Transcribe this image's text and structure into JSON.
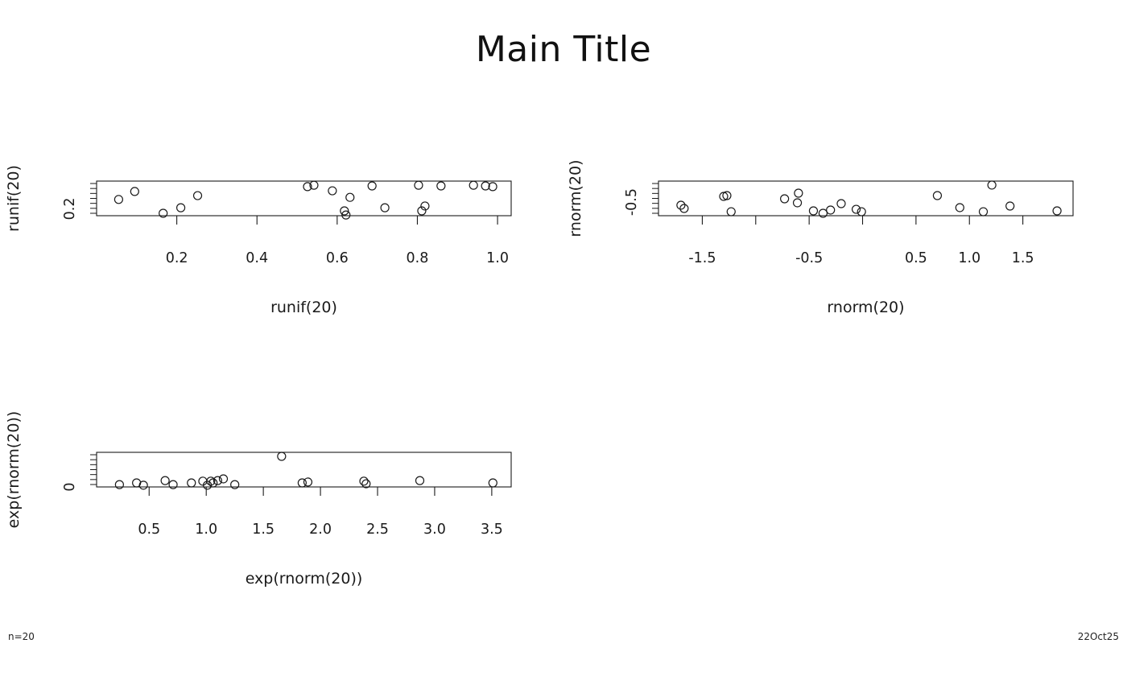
{
  "page": {
    "main_title": "Main Title",
    "footer_left": "n=20",
    "footer_right": "22Oct25"
  },
  "chart_data": [
    {
      "type": "scatter",
      "title": "",
      "xlabel": "runif(20)",
      "ylabel": "runif(20)",
      "xlim": [
        0,
        1.034
      ],
      "ylim": [
        0,
        1
      ],
      "xticks": [
        0.2,
        0.4,
        0.6,
        0.8,
        1.0
      ],
      "xtick_labels": [
        "0.2",
        "0.4",
        "0.6",
        "0.8",
        "1.0"
      ],
      "ytick_value": 0.2,
      "ytick_label": "0.2",
      "x": [
        0.055,
        0.095,
        0.166,
        0.21,
        0.252,
        0.526,
        0.542,
        0.588,
        0.618,
        0.632,
        0.622,
        0.687,
        0.719,
        0.803,
        0.811,
        0.819,
        0.859,
        0.94,
        0.97,
        0.988
      ],
      "y": [
        0.47,
        0.7,
        0.07,
        0.23,
        0.58,
        0.84,
        0.88,
        0.72,
        0.14,
        0.53,
        0.02,
        0.86,
        0.23,
        0.88,
        0.14,
        0.28,
        0.86,
        0.88,
        0.86,
        0.84
      ]
    },
    {
      "type": "scatter",
      "title": "",
      "xlabel": "rnorm(20)",
      "ylabel": "rnorm(20)",
      "xlim": [
        -1.91,
        1.97
      ],
      "ylim": [
        -1.8,
        1.5
      ],
      "xticks": [
        -1.5,
        -1.0,
        -0.5,
        0.0,
        0.5,
        1.0,
        1.5
      ],
      "xtick_labels": [
        "-1.5",
        "",
        "-0.5",
        "",
        "0.5",
        "1.0",
        "1.5"
      ],
      "ytick_value": -0.5,
      "ytick_label": "-0.5",
      "x": [
        -1.7,
        -1.67,
        -1.3,
        -1.27,
        -1.23,
        -0.73,
        -0.61,
        -0.6,
        -0.46,
        -0.37,
        -0.3,
        -0.2,
        -0.06,
        -0.01,
        0.7,
        0.91,
        1.13,
        1.21,
        1.38,
        1.82
      ],
      "y": [
        -0.8,
        -1.11,
        0.04,
        0.12,
        -1.42,
        -0.19,
        -0.57,
        0.35,
        -1.34,
        -1.57,
        -1.26,
        -0.65,
        -1.19,
        -1.42,
        0.12,
        -1.03,
        -1.42,
        1.12,
        -0.88,
        -1.34
      ]
    },
    {
      "type": "scatter",
      "title": "",
      "xlabel": "exp(rnorm(20))",
      "ylabel": "exp(rnorm(20))",
      "xlim": [
        0.04,
        3.67
      ],
      "ylim": [
        0,
        6
      ],
      "xticks": [
        0.5,
        1.0,
        1.5,
        2.0,
        2.5,
        3.0,
        3.5
      ],
      "xtick_labels": [
        "0.5",
        "1.0",
        "1.5",
        "2.0",
        "2.5",
        "3.0",
        "3.5"
      ],
      "ytick_value": 0,
      "ytick_label": "0",
      "x": [
        0.24,
        0.39,
        0.45,
        0.64,
        0.71,
        0.87,
        0.97,
        1.01,
        1.04,
        1.06,
        1.1,
        1.15,
        1.25,
        1.66,
        1.84,
        1.89,
        2.38,
        2.4,
        2.87,
        3.51
      ],
      "y": [
        0.4,
        0.7,
        0.3,
        1.1,
        0.4,
        0.7,
        1.0,
        0.3,
        1.0,
        0.7,
        1.1,
        1.4,
        0.4,
        5.3,
        0.7,
        0.85,
        1.0,
        0.55,
        1.1,
        0.7
      ]
    }
  ]
}
